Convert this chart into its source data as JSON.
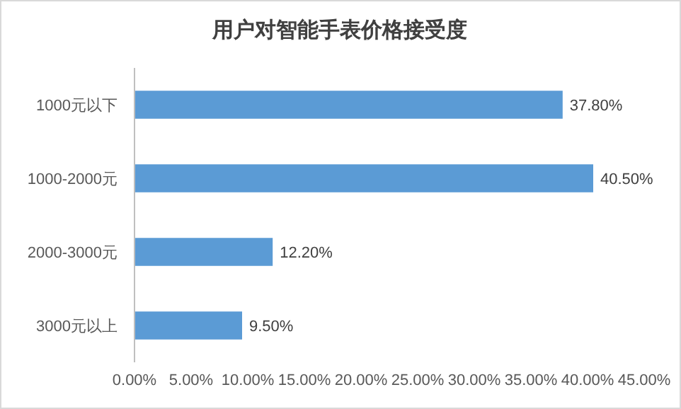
{
  "chart_data": {
    "type": "bar",
    "orientation": "horizontal",
    "title": "用户对智能手表价格接受度",
    "categories": [
      "1000元以下",
      "1000-2000元",
      "2000-3000元",
      "3000元以上"
    ],
    "values": [
      37.8,
      40.5,
      12.2,
      9.5
    ],
    "value_labels": [
      "37.80%",
      "40.50%",
      "12.20%",
      "9.50%"
    ],
    "color": "#5b9bd5",
    "xlim": [
      0,
      45
    ],
    "xticks": [
      {
        "value": 0,
        "label": "0.00%"
      },
      {
        "value": 5,
        "label": "5.00%"
      },
      {
        "value": 10,
        "label": "10.00%"
      },
      {
        "value": 15,
        "label": "15.00%"
      },
      {
        "value": 20,
        "label": "20.00%"
      },
      {
        "value": 25,
        "label": "25.00%"
      },
      {
        "value": 30,
        "label": "30.00%"
      },
      {
        "value": 35,
        "label": "35.00%"
      },
      {
        "value": 40,
        "label": "40.00%"
      },
      {
        "value": 45,
        "label": "45.00%"
      }
    ]
  }
}
